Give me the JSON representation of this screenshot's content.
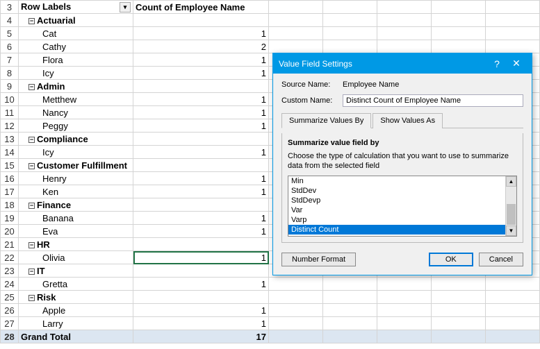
{
  "pivot": {
    "headers": {
      "rowLabels": "Row Labels",
      "countCol": "Count of Employee Name"
    },
    "grandTotal": {
      "label": "Grand Total",
      "value": 17
    },
    "selectedRowNum": 22,
    "rows": [
      {
        "n": 3,
        "type": "header"
      },
      {
        "n": 4,
        "type": "group",
        "label": "Actuarial"
      },
      {
        "n": 5,
        "type": "item",
        "label": "Cat",
        "value": 1
      },
      {
        "n": 6,
        "type": "item",
        "label": "Cathy",
        "value": 2
      },
      {
        "n": 7,
        "type": "item",
        "label": "Flora",
        "value": 1
      },
      {
        "n": 8,
        "type": "item",
        "label": "Icy",
        "value": 1
      },
      {
        "n": 9,
        "type": "group",
        "label": "Admin"
      },
      {
        "n": 10,
        "type": "item",
        "label": "Metthew",
        "value": 1
      },
      {
        "n": 11,
        "type": "item",
        "label": "Nancy",
        "value": 1
      },
      {
        "n": 12,
        "type": "item",
        "label": "Peggy",
        "value": 1
      },
      {
        "n": 13,
        "type": "group",
        "label": "Compliance"
      },
      {
        "n": 14,
        "type": "item",
        "label": "Icy",
        "value": 1
      },
      {
        "n": 15,
        "type": "group",
        "label": "Customer Fulfillment"
      },
      {
        "n": 16,
        "type": "item",
        "label": "Henry",
        "value": 1
      },
      {
        "n": 17,
        "type": "item",
        "label": "Ken",
        "value": 1
      },
      {
        "n": 18,
        "type": "group",
        "label": "Finance"
      },
      {
        "n": 19,
        "type": "item",
        "label": "Banana",
        "value": 1
      },
      {
        "n": 20,
        "type": "item",
        "label": "Eva",
        "value": 1
      },
      {
        "n": 21,
        "type": "group",
        "label": "HR"
      },
      {
        "n": 22,
        "type": "item",
        "label": "Olivia",
        "value": 1
      },
      {
        "n": 23,
        "type": "group",
        "label": "IT"
      },
      {
        "n": 24,
        "type": "item",
        "label": "Gretta",
        "value": 1
      },
      {
        "n": 25,
        "type": "group",
        "label": "Risk"
      },
      {
        "n": 26,
        "type": "item",
        "label": "Apple",
        "value": 1
      },
      {
        "n": 27,
        "type": "item",
        "label": "Larry",
        "value": 1
      },
      {
        "n": 28,
        "type": "total"
      }
    ]
  },
  "dialog": {
    "title": "Value Field Settings",
    "sourceLabel": "Source Name:",
    "sourceValue": "Employee Name",
    "customLabel": "Custom Name:",
    "customValue": "Distinct Count of Employee Name",
    "tab1": "Summarize Values By",
    "tab2": "Show Values As",
    "panelTitle": "Summarize value field by",
    "panelDesc": "Choose the type of calculation that you want to use to summarize data from the selected field",
    "options": [
      "Min",
      "StdDev",
      "StdDevp",
      "Var",
      "Varp",
      "Distinct Count"
    ],
    "selectedOption": "Distinct Count",
    "numberFormatBtn": "Number Format",
    "okBtn": "OK",
    "cancelBtn": "Cancel"
  }
}
